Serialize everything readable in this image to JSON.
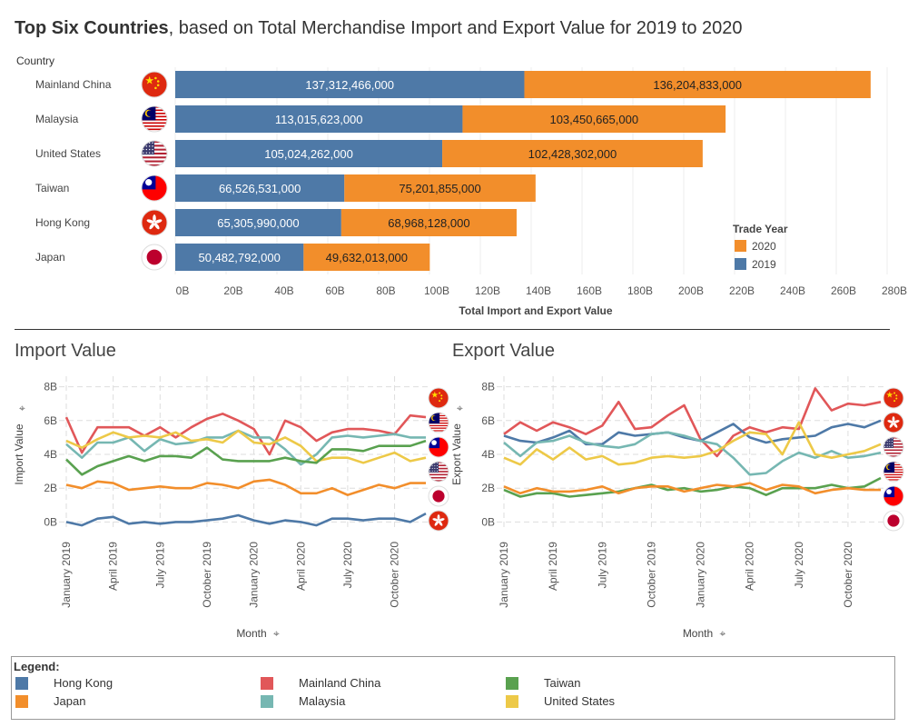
{
  "page": {
    "title_bold": "Top Six Countries",
    "title_rest": ", based on Total Merchandise Import and Export Value for 2019 to 2020"
  },
  "colors": {
    "2019": "#4e79a7",
    "2020": "#f28e2b",
    "Hong Kong": "#4e79a7",
    "Japan": "#f28e2b",
    "Mainland China": "#e15759",
    "Malaysia": "#76b7b2",
    "Taiwan": "#59a14f",
    "United States": "#edc948"
  },
  "chart_data": [
    {
      "type": "bar",
      "stacked": true,
      "orientation": "horizontal",
      "row_header": "Country",
      "xlabel": "Total Import and Export Value",
      "xlim": [
        0,
        280000000000
      ],
      "x_ticks": [
        "0B",
        "20B",
        "40B",
        "60B",
        "80B",
        "100B",
        "120B",
        "140B",
        "160B",
        "180B",
        "200B",
        "220B",
        "240B",
        "260B",
        "280B"
      ],
      "categories": [
        "Mainland China",
        "Malaysia",
        "United States",
        "Taiwan",
        "Hong Kong",
        "Japan"
      ],
      "flags": [
        "china-flag-icon",
        "malaysia-flag-icon",
        "usa-flag-icon",
        "taiwan-flag-icon",
        "hong-kong-flag-icon",
        "japan-flag-icon"
      ],
      "series": [
        {
          "name": "2019",
          "values": [
            137312466000,
            113015623000,
            105024262000,
            66526531000,
            65305990000,
            50482792000
          ],
          "labels": [
            "137,312,466,000",
            "113,015,623,000",
            "105,024,262,000",
            "66,526,531,000",
            "65,305,990,000",
            "50,482,792,000"
          ]
        },
        {
          "name": "2020",
          "values": [
            136204833000,
            103450665000,
            102428302000,
            75201855000,
            68968128000,
            49632013000
          ],
          "labels": [
            "136,204,833,000",
            "103,450,665,000",
            "102,428,302,000",
            "75,201,855,000",
            "68,968,128,000",
            "49,632,013,000"
          ]
        }
      ],
      "legend_title": "Trade Year",
      "legend_order": [
        "2020",
        "2019"
      ],
      "legend_position": "bottom-right"
    },
    {
      "type": "line",
      "title": "Import Value",
      "xlabel": "Month",
      "ylabel": "Import Value",
      "ylim": [
        -0.3,
        8.3
      ],
      "y_ticks": [
        "0B",
        "2B",
        "4B",
        "6B",
        "8B"
      ],
      "y_tick_values": [
        0,
        2,
        4,
        6,
        8
      ],
      "x_ticks": [
        "January 2019",
        "April 2019",
        "July 2019",
        "October 2019",
        "January 2020",
        "April 2020",
        "July 2020",
        "October 2020"
      ],
      "x_tick_index": [
        0,
        3,
        6,
        9,
        12,
        15,
        18,
        21
      ],
      "flags": [
        "china-flag-icon",
        "malaysia-flag-icon",
        "taiwan-flag-icon",
        "usa-flag-icon",
        "japan-flag-icon",
        "hong-kong-flag-icon"
      ],
      "series": [
        {
          "name": "Mainland China",
          "values": [
            6.2,
            4.1,
            5.6,
            5.6,
            5.6,
            5.1,
            5.6,
            5.0,
            5.6,
            6.1,
            6.4,
            6.0,
            5.5,
            4.0,
            6.0,
            5.6,
            4.8,
            5.3,
            5.5,
            5.5,
            5.4,
            5.2,
            6.3,
            6.2
          ]
        },
        {
          "name": "Malaysia",
          "values": [
            4.6,
            3.8,
            4.7,
            4.7,
            5.0,
            4.2,
            4.9,
            4.6,
            4.7,
            5.0,
            5.0,
            5.4,
            5.0,
            5.0,
            4.3,
            3.4,
            4.0,
            5.0,
            5.1,
            5.0,
            5.1,
            5.2,
            5.0,
            5.0
          ]
        },
        {
          "name": "United States",
          "values": [
            4.8,
            4.4,
            4.9,
            5.3,
            5.0,
            5.1,
            5.0,
            5.3,
            4.8,
            4.9,
            4.7,
            5.4,
            4.7,
            4.6,
            5.0,
            4.5,
            3.6,
            3.8,
            3.8,
            3.5,
            3.8,
            4.1,
            3.6,
            3.8
          ]
        },
        {
          "name": "Taiwan",
          "values": [
            3.7,
            2.8,
            3.3,
            3.6,
            3.9,
            3.6,
            3.9,
            3.9,
            3.8,
            4.4,
            3.7,
            3.6,
            3.6,
            3.6,
            3.8,
            3.6,
            3.5,
            4.3,
            4.3,
            4.2,
            4.5,
            4.5,
            4.5,
            4.8
          ]
        },
        {
          "name": "Japan",
          "values": [
            2.2,
            2.0,
            2.4,
            2.3,
            1.9,
            2.0,
            2.1,
            2.0,
            2.0,
            2.3,
            2.2,
            2.0,
            2.4,
            2.5,
            2.2,
            1.7,
            1.7,
            2.0,
            1.6,
            1.9,
            2.2,
            2.0,
            2.3,
            2.3
          ]
        },
        {
          "name": "Hong Kong",
          "values": [
            0.0,
            -0.2,
            0.2,
            0.3,
            -0.1,
            0.0,
            -0.1,
            0.0,
            0.0,
            0.1,
            0.2,
            0.4,
            0.1,
            -0.1,
            0.1,
            0.0,
            -0.2,
            0.2,
            0.2,
            0.1,
            0.2,
            0.2,
            0.0,
            0.5
          ]
        }
      ]
    },
    {
      "type": "line",
      "title": "Export Value",
      "xlabel": "Month",
      "ylabel": "Export Value",
      "ylim": [
        -0.3,
        8.3
      ],
      "y_ticks": [
        "0B",
        "2B",
        "4B",
        "6B",
        "8B"
      ],
      "y_tick_values": [
        0,
        2,
        4,
        6,
        8
      ],
      "x_ticks": [
        "January 2019",
        "April 2019",
        "July 2019",
        "October 2019",
        "January 2020",
        "April 2020",
        "July 2020",
        "October 2020"
      ],
      "x_tick_index": [
        0,
        3,
        6,
        9,
        12,
        15,
        18,
        21
      ],
      "flags": [
        "china-flag-icon",
        "hong-kong-flag-icon",
        "usa-flag-icon",
        "malaysia-flag-icon",
        "taiwan-flag-icon",
        "japan-flag-icon"
      ],
      "series": [
        {
          "name": "Mainland China",
          "values": [
            5.2,
            5.9,
            5.4,
            5.9,
            5.6,
            5.2,
            5.7,
            7.1,
            5.5,
            5.6,
            6.3,
            6.9,
            4.9,
            3.9,
            5.1,
            5.6,
            5.3,
            5.6,
            5.5,
            7.9,
            6.6,
            7.0,
            6.9,
            7.1
          ]
        },
        {
          "name": "Hong Kong",
          "values": [
            5.1,
            4.8,
            4.7,
            5.0,
            5.4,
            4.6,
            4.6,
            5.3,
            5.1,
            5.2,
            5.3,
            5.0,
            4.8,
            5.3,
            5.8,
            5.0,
            4.7,
            4.9,
            5.0,
            5.1,
            5.6,
            5.8,
            5.6,
            6.0
          ]
        },
        {
          "name": "Malaysia",
          "values": [
            4.7,
            3.9,
            4.7,
            4.8,
            5.1,
            4.7,
            4.5,
            4.4,
            4.6,
            5.2,
            5.3,
            5.1,
            4.8,
            4.6,
            3.8,
            2.8,
            2.9,
            3.6,
            4.1,
            3.8,
            4.2,
            3.8,
            3.9,
            4.1
          ]
        },
        {
          "name": "United States",
          "values": [
            3.8,
            3.4,
            4.3,
            3.7,
            4.4,
            3.7,
            3.9,
            3.4,
            3.5,
            3.8,
            3.9,
            3.8,
            3.9,
            4.2,
            4.8,
            5.3,
            5.2,
            4.0,
            5.9,
            4.0,
            3.8,
            4.0,
            4.2,
            4.6
          ]
        },
        {
          "name": "Taiwan",
          "values": [
            1.9,
            1.5,
            1.7,
            1.7,
            1.5,
            1.6,
            1.7,
            1.8,
            2.0,
            2.2,
            1.9,
            2.0,
            1.8,
            1.9,
            2.1,
            2.0,
            1.6,
            2.0,
            2.0,
            2.0,
            2.2,
            2.0,
            2.1,
            2.6
          ]
        },
        {
          "name": "Japan",
          "values": [
            2.1,
            1.7,
            2.0,
            1.8,
            1.8,
            1.9,
            2.1,
            1.7,
            2.0,
            2.1,
            2.1,
            1.8,
            2.0,
            2.2,
            2.1,
            2.3,
            1.9,
            2.2,
            2.1,
            1.7,
            1.9,
            2.0,
            1.9,
            1.9
          ]
        }
      ]
    }
  ],
  "legend": {
    "title": "Legend:",
    "items": [
      {
        "label": "Hong Kong",
        "color": "#4e79a7"
      },
      {
        "label": "Mainland China",
        "color": "#e15759"
      },
      {
        "label": "Taiwan",
        "color": "#59a14f"
      },
      {
        "label": "Japan",
        "color": "#f28e2b"
      },
      {
        "label": "Malaysia",
        "color": "#76b7b2"
      },
      {
        "label": "United States",
        "color": "#edc948"
      }
    ]
  }
}
